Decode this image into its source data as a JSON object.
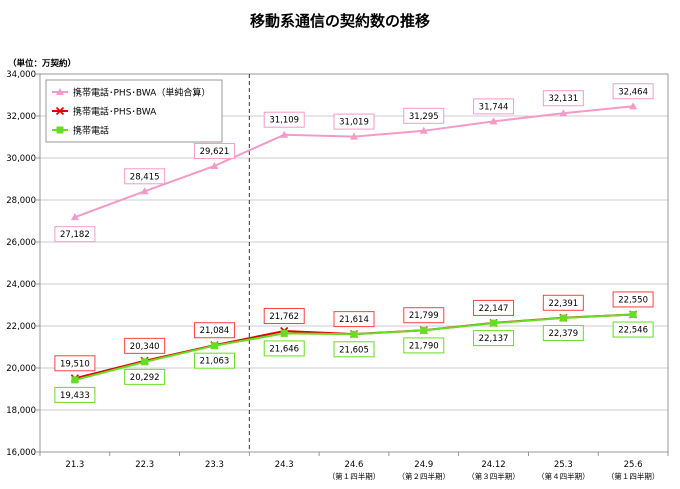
{
  "chart_data": {
    "type": "line",
    "title": "移動系通信の契約数の推移",
    "unit_label": "（単位：万契約）",
    "categories": [
      "21.3",
      "22.3",
      "23.3",
      "24.3",
      "24.6",
      "24.9",
      "24.12",
      "25.3",
      "25.6"
    ],
    "category_sublabels": [
      "",
      "",
      "",
      "",
      "（第１四半期）",
      "（第２四半期）",
      "（第３四半期）",
      "（第４四半期）",
      "（第１四半期）"
    ],
    "ylim": [
      16000,
      34000
    ],
    "yticks": [
      16000,
      18000,
      20000,
      22000,
      24000,
      26000,
      28000,
      30000,
      32000,
      34000
    ],
    "ytick_labels": [
      "16,000",
      "18,000",
      "20,000",
      "22,000",
      "24,000",
      "26,000",
      "28,000",
      "30,000",
      "32,000",
      "34,000"
    ],
    "grid": true,
    "legend_position": "top-left",
    "divider_after_category": "23.3",
    "series": [
      {
        "name": "携帯電話･PHS･BWA（単純合算）",
        "color": "#f59ac8",
        "marker": "triangle",
        "values": [
          27182,
          28415,
          29621,
          31109,
          31019,
          31295,
          31744,
          32131,
          32464
        ],
        "labels": [
          "27,182",
          "28,415",
          "29,621",
          "31,109",
          "31,019",
          "31,295",
          "31,744",
          "32,131",
          "32,464"
        ],
        "label_border": "#f59ac8",
        "label_position": [
          "below",
          "above",
          "above",
          "above",
          "above",
          "above",
          "above",
          "above",
          "above"
        ]
      },
      {
        "name": "携帯電話･PHS･BWA",
        "color": "#e00000",
        "marker": "x",
        "values": [
          19510,
          20340,
          21084,
          21762,
          21614,
          21799,
          22147,
          22391,
          22550
        ],
        "labels": [
          "19,510",
          "20,340",
          "21,084",
          "21,762",
          "21,614",
          "21,799",
          "22,147",
          "22,391",
          "22,550"
        ],
        "label_border": "#ff4040",
        "label_position": [
          "above",
          "above",
          "above",
          "above",
          "above",
          "above",
          "above",
          "above",
          "above"
        ]
      },
      {
        "name": "携帯電話",
        "color": "#66dd22",
        "marker": "square",
        "values": [
          19433,
          20292,
          21063,
          21646,
          21605,
          21790,
          22137,
          22379,
          22546
        ],
        "labels": [
          "19,433",
          "20,292",
          "21,063",
          "21,646",
          "21,605",
          "21,790",
          "22,137",
          "22,379",
          "22,546"
        ],
        "label_border": "#66dd22",
        "label_position": [
          "below",
          "below",
          "below",
          "below",
          "below",
          "below",
          "below",
          "below",
          "below"
        ]
      }
    ]
  }
}
